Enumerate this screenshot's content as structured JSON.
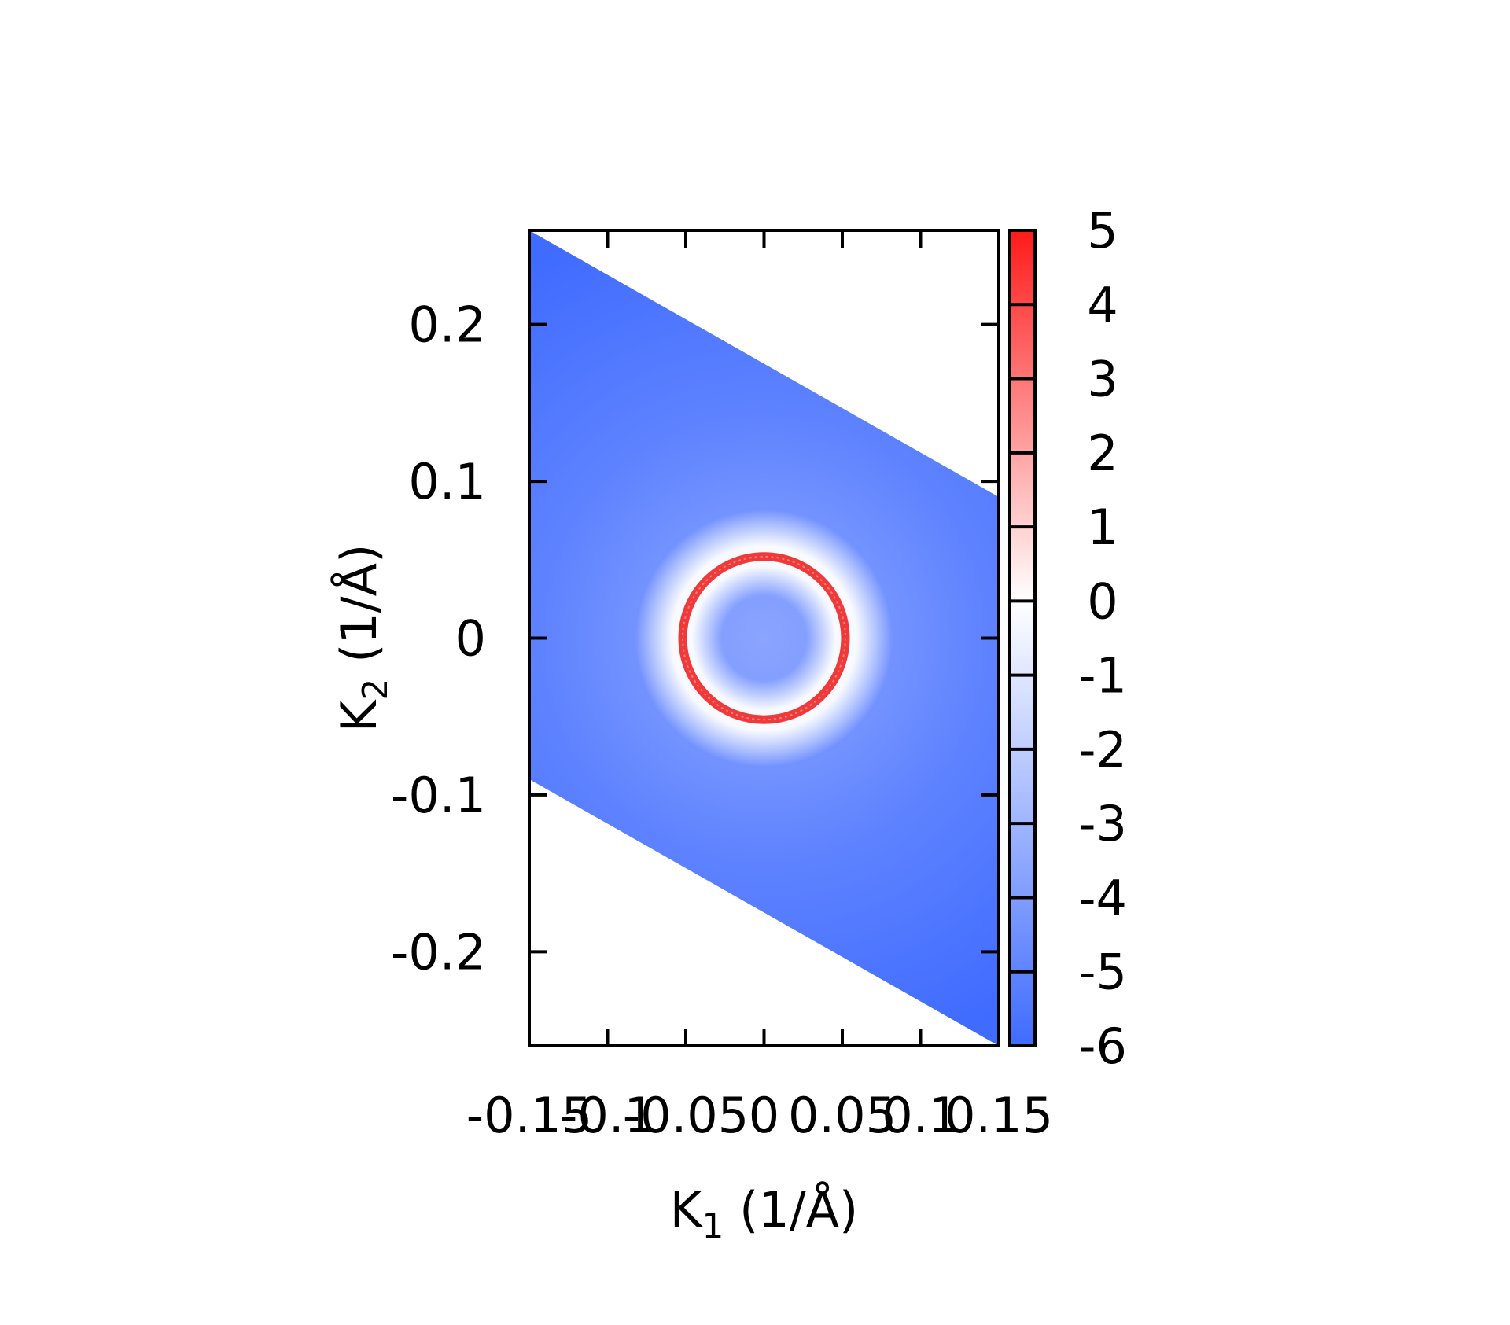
{
  "chart_data": {
    "type": "heatmap",
    "title": "",
    "xlabel": {
      "base": "K",
      "sub": "1",
      "rest": " (1/Å)"
    },
    "ylabel": {
      "base": "K",
      "sub": "2",
      "rest": " (1/Å)"
    },
    "xlim": [
      -0.15,
      0.15
    ],
    "ylim": [
      -0.26,
      0.26
    ],
    "x_ticks": [
      {
        "value": -0.15,
        "label": "-0.15"
      },
      {
        "value": -0.1,
        "label": "-0.1"
      },
      {
        "value": -0.05,
        "label": "-0.05"
      },
      {
        "value": 0,
        "label": "0"
      },
      {
        "value": 0.05,
        "label": "0.05"
      },
      {
        "value": 0.1,
        "label": "0.1"
      },
      {
        "value": 0.15,
        "label": "0.15"
      }
    ],
    "y_ticks": [
      {
        "value": 0.2,
        "label": "0.2"
      },
      {
        "value": 0.1,
        "label": "0.1"
      },
      {
        "value": 0,
        "label": "0"
      },
      {
        "value": -0.1,
        "label": "-0.1"
      },
      {
        "value": -0.2,
        "label": "-0.2"
      }
    ],
    "colorbar": {
      "min": -6,
      "max": 5,
      "ticks": [
        {
          "value": 5,
          "label": "5"
        },
        {
          "value": 4,
          "label": "4"
        },
        {
          "value": 3,
          "label": "3"
        },
        {
          "value": 2,
          "label": "2"
        },
        {
          "value": 1,
          "label": "1"
        },
        {
          "value": 0,
          "label": "0"
        },
        {
          "value": -1,
          "label": "-1"
        },
        {
          "value": -2,
          "label": "-2"
        },
        {
          "value": -3,
          "label": "-3"
        },
        {
          "value": -4,
          "label": "-4"
        },
        {
          "value": -5,
          "label": "-5"
        },
        {
          "value": -6,
          "label": "-6"
        }
      ],
      "colors": {
        "low": "#3f6bff",
        "mid": "#ffffff",
        "high": "#ff1a1a"
      }
    },
    "data_region": {
      "shape": "parallelogram",
      "vertices": [
        [
          -0.15,
          0.26
        ],
        [
          0.15,
          0.09
        ],
        [
          0.15,
          -0.26
        ],
        [
          -0.15,
          -0.09
        ]
      ]
    },
    "features": [
      {
        "type": "ring",
        "center": [
          0,
          0
        ],
        "radius_k1": 0.052,
        "radius_k2": 0.052,
        "value": 4.5
      }
    ],
    "background_trend": {
      "center_value": -3.5,
      "corner_value": -6
    },
    "grid": false,
    "legend": "colorbar-right"
  }
}
